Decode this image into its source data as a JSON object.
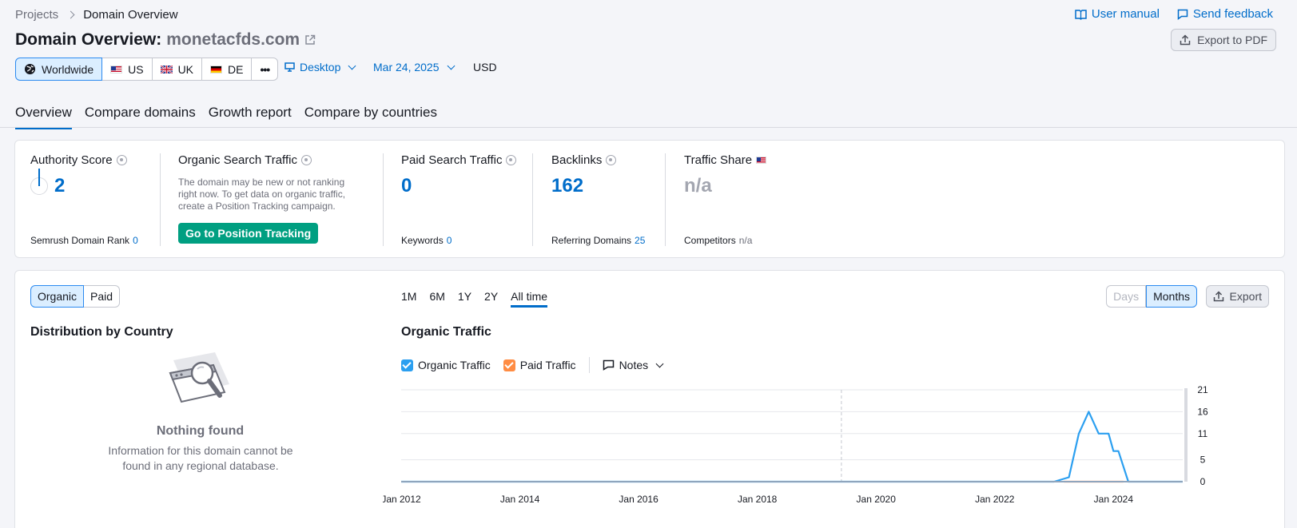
{
  "breadcrumb": {
    "root": "Projects",
    "current": "Domain Overview"
  },
  "top_links": {
    "user_manual": "User manual",
    "send_feedback": "Send feedback"
  },
  "title": {
    "prefix": "Domain Overview:",
    "domain": "monetacfds.com"
  },
  "export_pdf": "Export to PDF",
  "databases": [
    {
      "label": "Worldwide",
      "icon": "globe-icon",
      "active": true
    },
    {
      "label": "US",
      "icon": "us-flag-icon"
    },
    {
      "label": "UK",
      "icon": "uk-flag-icon"
    },
    {
      "label": "DE",
      "icon": "de-flag-icon"
    },
    {
      "label": "•••",
      "icon": "more-icon"
    }
  ],
  "filters": {
    "device": "Desktop",
    "date": "Mar 24, 2025",
    "currency": "USD"
  },
  "tabs": [
    "Overview",
    "Compare domains",
    "Growth report",
    "Compare by countries"
  ],
  "metrics": {
    "authority": {
      "label": "Authority Score",
      "value": "2",
      "sub_label": "Semrush Domain Rank",
      "sub_value": "0"
    },
    "organic": {
      "label": "Organic Search Traffic",
      "note": "The domain may be new or not ranking right now. To get data on organic traffic, create a Position Tracking campaign.",
      "button": "Go to Position Tracking"
    },
    "paid": {
      "label": "Paid Search Traffic",
      "value": "0",
      "sub_label": "Keywords",
      "sub_value": "0"
    },
    "backlinks": {
      "label": "Backlinks",
      "value": "162",
      "sub_label": "Referring Domains",
      "sub_value": "25"
    },
    "traffic_share": {
      "label": "Traffic Share",
      "value": "n/a",
      "sub_label": "Competitors",
      "sub_value": "n/a"
    }
  },
  "main": {
    "type_toggle": [
      "Organic",
      "Paid"
    ],
    "periods": [
      "1M",
      "6M",
      "1Y",
      "2Y",
      "All time"
    ],
    "granularity": [
      "Days",
      "Months"
    ],
    "export": "Export",
    "distribution_title": "Distribution by Country",
    "nothing_found_title": "Nothing found",
    "nothing_found_text": "Information for this domain cannot be found in any regional database.",
    "chart_title": "Organic Traffic",
    "legend": {
      "organic": "Organic Traffic",
      "paid": "Paid Traffic",
      "notes": "Notes"
    }
  },
  "colors": {
    "accent": "#006dca",
    "organic": "#2b9ff0",
    "paid": "#ff8c43",
    "green_button": "#009f81"
  },
  "chart_data": {
    "type": "line",
    "title": "Organic Traffic",
    "x_ticks": [
      "Jan 2012",
      "Jan 2014",
      "Jan 2016",
      "Jan 2018",
      "Jan 2020",
      "Jan 2022",
      "Jan 2024"
    ],
    "y_ticks": [
      0,
      5,
      11,
      16,
      21
    ],
    "ylim": [
      0,
      21
    ],
    "xlim": [
      "2012-01",
      "2025-03"
    ],
    "series": [
      {
        "name": "Organic Traffic",
        "points": [
          [
            "2012-01",
            0
          ],
          [
            "2023-01",
            0
          ],
          [
            "2023-04",
            1
          ],
          [
            "2023-06",
            11
          ],
          [
            "2023-08",
            16
          ],
          [
            "2023-10",
            11
          ],
          [
            "2023-12",
            11
          ],
          [
            "2024-01",
            7
          ],
          [
            "2024-02",
            7
          ],
          [
            "2024-04",
            0
          ],
          [
            "2025-03",
            0
          ]
        ]
      },
      {
        "name": "Paid Traffic",
        "points": [
          [
            "2023-03",
            0
          ],
          [
            "2024-03",
            0
          ]
        ]
      }
    ]
  }
}
